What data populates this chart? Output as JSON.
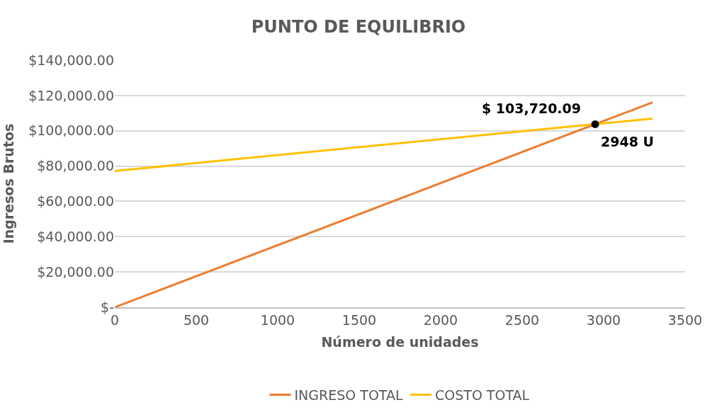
{
  "chart_data": {
    "type": "line",
    "title": "PUNTO DE EQUILIBRIO",
    "xlabel": "Número de unidades",
    "ylabel": "Ingresos Brutos",
    "series": [
      {
        "name": "INGRESO TOTAL",
        "color": "#ed7d31",
        "x": [
          0,
          3300
        ],
        "values": [
          0,
          116100
        ]
      },
      {
        "name": "COSTO TOTAL",
        "color": "#ffc000",
        "x": [
          0,
          3300
        ],
        "values": [
          77200,
          106900
        ]
      },
      {
        "type": "scatter",
        "color": "#000000",
        "x": [
          2948
        ],
        "values": [
          103720.09
        ],
        "marker": "circle"
      }
    ],
    "xlim": [
      0,
      3500
    ],
    "xticks": [
      0,
      500,
      1000,
      1500,
      2000,
      2500,
      3000,
      3500
    ],
    "ylim": [
      0,
      140000
    ],
    "yticks": [
      {
        "value": 0,
        "label": "$-"
      },
      {
        "value": 20000,
        "label": "$20,000.00"
      },
      {
        "value": 40000,
        "label": "$40,000.00"
      },
      {
        "value": 60000,
        "label": "$60,000.00"
      },
      {
        "value": 80000,
        "label": "$80,000.00"
      },
      {
        "value": 100000,
        "label": "$100,000.00"
      },
      {
        "value": 120000,
        "label": "$120,000.00"
      },
      {
        "value": 140000,
        "label": "$140,000.00"
      }
    ],
    "grid": "y",
    "legend": "bottom",
    "marker": "none",
    "line_style": "solid",
    "annotations": [
      {
        "text": "$ 103,720.09",
        "x": 2948,
        "y": 103720.09
      },
      {
        "text": "2948 U",
        "x": 2948,
        "y": 103720.09
      }
    ]
  }
}
